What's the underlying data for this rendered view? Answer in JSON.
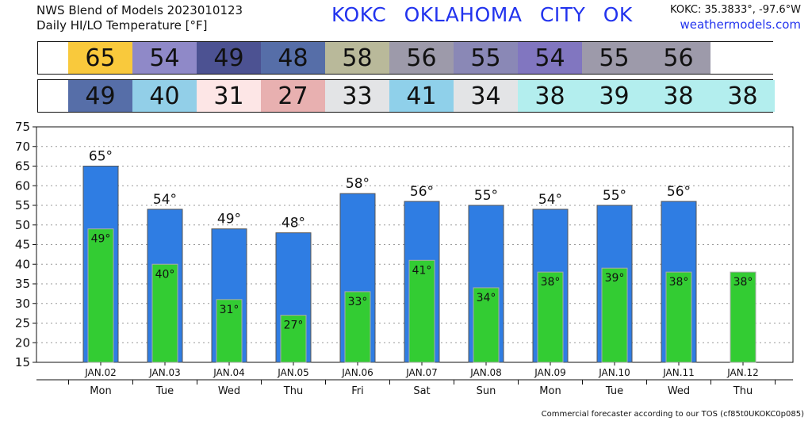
{
  "header": {
    "title_line1": "NWS Blend of Models 2023010123",
    "title_line2": "Daily HI/LO Temperature [°F]",
    "station": "KOKC   OKLAHOMA CITY   OK",
    "coords": "KOKC: 35.3833°, -97.6°W",
    "site": "weathermodels.com"
  },
  "hi_strip": {
    "values": [
      "65",
      "54",
      "49",
      "48",
      "58",
      "56",
      "55",
      "54",
      "55",
      "56",
      ""
    ],
    "colors": [
      "#f9c93c",
      "#8f89c8",
      "#4c5292",
      "#566ea8",
      "#b9b99a",
      "#9d9aaa",
      "#8a88b6",
      "#8176c0",
      "#9d9aaa",
      "#9d9aaa",
      "#ffffff"
    ]
  },
  "lo_strip": {
    "values": [
      "49",
      "40",
      "31",
      "27",
      "33",
      "41",
      "34",
      "38",
      "39",
      "38",
      "38"
    ],
    "colors": [
      "#566ea8",
      "#92cfe8",
      "#fde6e6",
      "#e8b0b0",
      "#e3e4e6",
      "#8fd0ea",
      "#e3e4e6",
      "#b3eeee",
      "#b3eeee",
      "#b3eeee",
      "#b3eeee"
    ]
  },
  "chart_data": {
    "type": "bar",
    "categories": [
      "JAN.02",
      "JAN.03",
      "JAN.04",
      "JAN.05",
      "JAN.06",
      "JAN.07",
      "JAN.08",
      "JAN.09",
      "JAN.10",
      "JAN.11",
      "JAN.12"
    ],
    "weekdays": [
      "Mon",
      "Tue",
      "Wed",
      "Thu",
      "Fri",
      "Sat",
      "Sun",
      "Mon",
      "Tue",
      "Wed",
      "Thu"
    ],
    "series": [
      {
        "values": [
          65,
          54,
          49,
          48,
          58,
          56,
          55,
          54,
          55,
          56,
          null
        ],
        "color": "#2f7de3"
      },
      {
        "values": [
          49,
          40,
          31,
          27,
          33,
          41,
          34,
          38,
          39,
          38,
          38
        ],
        "color": "#33cc33"
      }
    ],
    "hi_labels": [
      "65°",
      "54°",
      "49°",
      "48°",
      "58°",
      "56°",
      "55°",
      "54°",
      "55°",
      "56°",
      ""
    ],
    "lo_labels": [
      "49°",
      "40°",
      "31°",
      "27°",
      "33°",
      "41°",
      "34°",
      "38°",
      "39°",
      "38°",
      "38°"
    ],
    "yticks": [
      "15",
      "20",
      "25",
      "30",
      "35",
      "40",
      "45",
      "50",
      "55",
      "60",
      "65",
      "70",
      "75"
    ],
    "ylim": [
      15,
      75
    ],
    "grid": true
  },
  "footer": "Commercial forecaster according to our TOS (cf85t0UKOKC0p085)"
}
